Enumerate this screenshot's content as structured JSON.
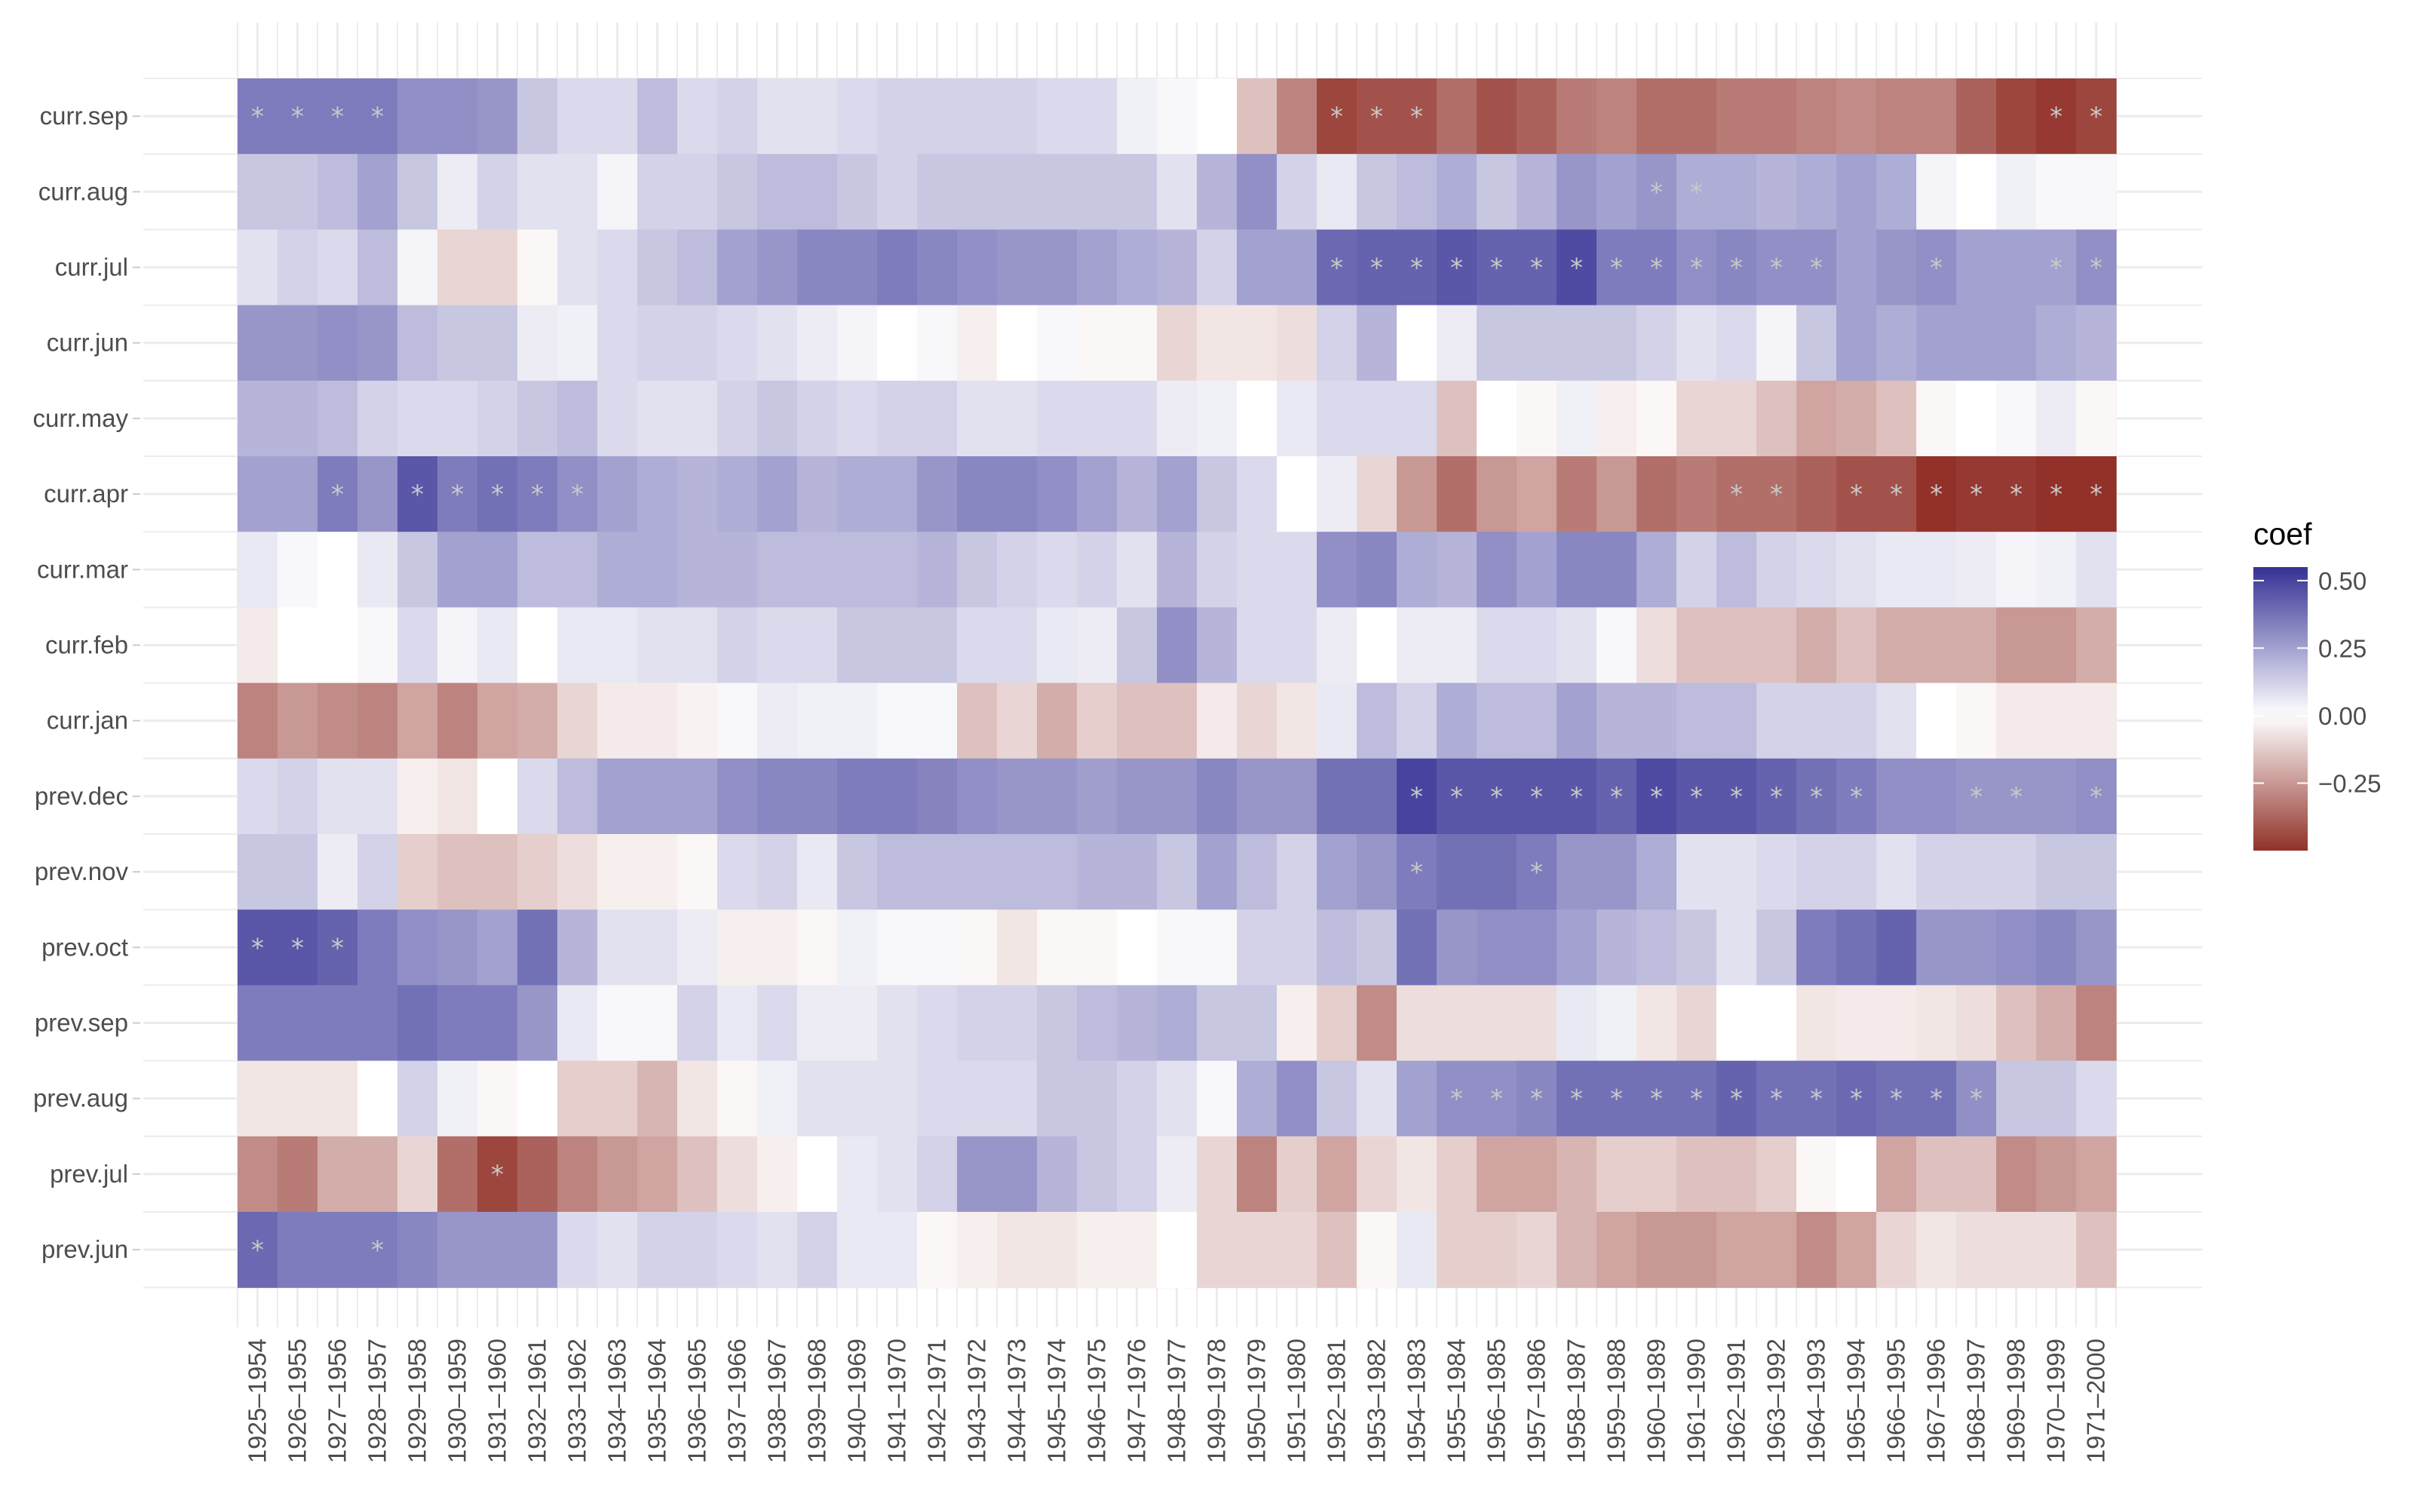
{
  "chart_data": {
    "type": "heatmap",
    "x": [
      "1925–1954",
      "1926–1955",
      "1927–1956",
      "1928–1957",
      "1929–1958",
      "1930–1959",
      "1931–1960",
      "1932–1961",
      "1933–1962",
      "1934–1963",
      "1935–1964",
      "1936–1965",
      "1937–1966",
      "1938–1967",
      "1939–1968",
      "1940–1969",
      "1941–1970",
      "1942–1971",
      "1943–1972",
      "1944–1973",
      "1945–1974",
      "1946–1975",
      "1947–1976",
      "1948–1977",
      "1949–1978",
      "1950–1979",
      "1951–1980",
      "1952–1981",
      "1953–1982",
      "1954–1983",
      "1955–1984",
      "1956–1985",
      "1957–1986",
      "1958–1987",
      "1959–1988",
      "1960–1989",
      "1961–1990",
      "1962–1991",
      "1963–1992",
      "1964–1993",
      "1965–1994",
      "1966–1995",
      "1967–1996",
      "1968–1997",
      "1969–1998",
      "1970–1999",
      "1971–2000"
    ],
    "y": [
      "curr.sep",
      "curr.aug",
      "curr.jul",
      "curr.jun",
      "curr.may",
      "curr.apr",
      "curr.mar",
      "curr.feb",
      "curr.jan",
      "prev.dec",
      "prev.nov",
      "prev.oct",
      "prev.sep",
      "prev.aug",
      "prev.jul",
      "prev.jun"
    ],
    "values": [
      [
        0.35,
        0.35,
        0.35,
        0.35,
        0.3,
        0.3,
        0.28,
        0.15,
        0.1,
        0.1,
        0.18,
        0.1,
        0.12,
        0.08,
        0.08,
        0.1,
        0.12,
        0.12,
        0.12,
        0.12,
        0.1,
        0.1,
        0.04,
        0.02,
        0,
        -0.15,
        -0.3,
        -0.45,
        -0.42,
        -0.42,
        -0.35,
        -0.42,
        -0.38,
        -0.32,
        -0.3,
        -0.35,
        -0.35,
        -0.32,
        -0.32,
        -0.3,
        -0.28,
        -0.3,
        -0.3,
        -0.38,
        -0.45,
        -0.48,
        -0.45
      ],
      [
        0.15,
        0.15,
        0.18,
        0.25,
        0.15,
        0.05,
        0.12,
        0.08,
        0.08,
        0.03,
        0.12,
        0.12,
        0.15,
        0.18,
        0.18,
        0.15,
        0.12,
        0.15,
        0.15,
        0.15,
        0.15,
        0.15,
        0.15,
        0.08,
        0.2,
        0.3,
        0.12,
        0.06,
        0.15,
        0.18,
        0.22,
        0.15,
        0.2,
        0.28,
        0.25,
        0.28,
        0.22,
        0.22,
        0.2,
        0.22,
        0.25,
        0.22,
        0.03,
        0,
        0.04,
        0.02,
        0.02
      ],
      [
        0.08,
        0.12,
        0.1,
        0.18,
        0.03,
        -0.1,
        -0.1,
        -0.02,
        0.08,
        0.1,
        0.15,
        0.18,
        0.25,
        0.28,
        0.32,
        0.32,
        0.35,
        0.32,
        0.3,
        0.28,
        0.28,
        0.25,
        0.22,
        0.2,
        0.12,
        0.25,
        0.25,
        0.4,
        0.42,
        0.42,
        0.45,
        0.42,
        0.42,
        0.48,
        0.35,
        0.35,
        0.3,
        0.32,
        0.3,
        0.3,
        0.25,
        0.28,
        0.3,
        0.25,
        0.25,
        0.25,
        0.3
      ],
      [
        0.28,
        0.28,
        0.3,
        0.28,
        0.18,
        0.15,
        0.15,
        0.05,
        0.04,
        0.1,
        0.12,
        0.12,
        0.1,
        0.08,
        0.05,
        0.03,
        0,
        0.02,
        -0.04,
        0,
        0.02,
        -0.02,
        -0.02,
        -0.1,
        -0.06,
        -0.06,
        -0.08,
        0.12,
        0.2,
        0,
        0.05,
        0.15,
        0.15,
        0.15,
        0.15,
        0.12,
        0.08,
        0.1,
        0.03,
        0.15,
        0.25,
        0.22,
        0.25,
        0.25,
        0.25,
        0.22,
        0.2
      ],
      [
        0.2,
        0.2,
        0.18,
        0.12,
        0.1,
        0.1,
        0.12,
        0.15,
        0.18,
        0.1,
        0.08,
        0.08,
        0.12,
        0.15,
        0.12,
        0.1,
        0.12,
        0.12,
        0.08,
        0.08,
        0.1,
        0.1,
        0.1,
        0.05,
        0.04,
        0,
        0.06,
        0.1,
        0.1,
        0.1,
        -0.15,
        0,
        -0.02,
        0.04,
        -0.04,
        -0.02,
        -0.1,
        -0.1,
        -0.15,
        -0.22,
        -0.2,
        -0.15,
        -0.02,
        0,
        0.02,
        0.05,
        -0.02
      ],
      [
        0.25,
        0.25,
        0.35,
        0.28,
        0.45,
        0.35,
        0.38,
        0.35,
        0.3,
        0.25,
        0.22,
        0.2,
        0.22,
        0.25,
        0.2,
        0.22,
        0.22,
        0.28,
        0.32,
        0.32,
        0.3,
        0.25,
        0.2,
        0.25,
        0.15,
        0.1,
        0,
        0.05,
        -0.1,
        -0.25,
        -0.35,
        -0.25,
        -0.22,
        -0.32,
        -0.25,
        -0.35,
        -0.32,
        -0.35,
        -0.35,
        -0.38,
        -0.42,
        -0.42,
        -0.5,
        -0.48,
        -0.48,
        -0.5,
        -0.5
      ],
      [
        0.06,
        0.02,
        0,
        0.06,
        0.15,
        0.25,
        0.25,
        0.18,
        0.18,
        0.22,
        0.22,
        0.2,
        0.2,
        0.18,
        0.18,
        0.18,
        0.18,
        0.2,
        0.15,
        0.12,
        0.1,
        0.12,
        0.08,
        0.2,
        0.12,
        0.1,
        0.1,
        0.3,
        0.32,
        0.22,
        0.2,
        0.3,
        0.25,
        0.32,
        0.32,
        0.22,
        0.12,
        0.18,
        0.12,
        0.1,
        0.08,
        0.06,
        0.06,
        0.05,
        0.03,
        0.04,
        0.08
      ],
      [
        -0.05,
        0,
        0,
        0.02,
        0.1,
        0.03,
        0.06,
        0,
        0.06,
        0.06,
        0.08,
        0.08,
        0.12,
        0.1,
        0.1,
        0.15,
        0.15,
        0.15,
        0.1,
        0.1,
        0.06,
        0.05,
        0.15,
        0.3,
        0.2,
        0.1,
        0.1,
        0.05,
        0,
        0.05,
        0.05,
        0.1,
        0.1,
        0.08,
        0.02,
        -0.08,
        -0.15,
        -0.15,
        -0.15,
        -0.2,
        -0.15,
        -0.2,
        -0.2,
        -0.2,
        -0.25,
        -0.25,
        -0.2
      ],
      [
        -0.3,
        -0.25,
        -0.28,
        -0.3,
        -0.22,
        -0.3,
        -0.22,
        -0.2,
        -0.1,
        -0.05,
        -0.05,
        -0.03,
        0.02,
        0.05,
        0.04,
        0.04,
        0.02,
        0.02,
        -0.15,
        -0.1,
        -0.2,
        -0.12,
        -0.15,
        -0.15,
        -0.05,
        -0.1,
        -0.06,
        0.06,
        0.18,
        0.12,
        0.22,
        0.18,
        0.18,
        0.25,
        0.2,
        0.2,
        0.18,
        0.18,
        0.12,
        0.12,
        0.12,
        0.08,
        0,
        -0.02,
        -0.05,
        -0.05,
        -0.05
      ],
      [
        0.1,
        0.12,
        0.08,
        0.08,
        -0.04,
        -0.06,
        0,
        0.1,
        0.18,
        0.25,
        0.25,
        0.25,
        0.3,
        0.32,
        0.32,
        0.35,
        0.35,
        0.33,
        0.3,
        0.28,
        0.28,
        0.26,
        0.28,
        0.28,
        0.32,
        0.28,
        0.28,
        0.38,
        0.38,
        0.5,
        0.45,
        0.45,
        0.45,
        0.45,
        0.42,
        0.48,
        0.45,
        0.45,
        0.42,
        0.38,
        0.35,
        0.3,
        0.3,
        0.28,
        0.28,
        0.28,
        0.3
      ],
      [
        0.15,
        0.15,
        0.05,
        0.12,
        -0.12,
        -0.15,
        -0.15,
        -0.12,
        -0.08,
        -0.04,
        -0.04,
        -0.02,
        0.1,
        0.12,
        0.06,
        0.15,
        0.18,
        0.18,
        0.18,
        0.18,
        0.18,
        0.2,
        0.2,
        0.15,
        0.25,
        0.18,
        0.12,
        0.25,
        0.28,
        0.35,
        0.38,
        0.38,
        0.35,
        0.28,
        0.28,
        0.22,
        0.08,
        0.08,
        0.1,
        0.12,
        0.12,
        0.08,
        0.12,
        0.12,
        0.12,
        0.15,
        0.15
      ],
      [
        0.45,
        0.45,
        0.42,
        0.35,
        0.3,
        0.28,
        0.25,
        0.38,
        0.2,
        0.08,
        0.08,
        0.05,
        -0.04,
        -0.04,
        -0.02,
        0.04,
        0.02,
        0.02,
        -0.02,
        -0.06,
        -0.02,
        -0.02,
        0,
        0.02,
        0.02,
        0.12,
        0.12,
        0.18,
        0.15,
        0.38,
        0.28,
        0.3,
        0.3,
        0.25,
        0.2,
        0.18,
        0.15,
        0.08,
        0.15,
        0.35,
        0.38,
        0.42,
        0.28,
        0.28,
        0.3,
        0.32,
        0.28
      ],
      [
        0.35,
        0.35,
        0.35,
        0.35,
        0.38,
        0.35,
        0.35,
        0.28,
        0.06,
        0.02,
        0.02,
        0.12,
        0.06,
        0.1,
        0.05,
        0.05,
        0.08,
        0.1,
        0.12,
        0.12,
        0.15,
        0.18,
        0.2,
        0.22,
        0.15,
        0.15,
        -0.04,
        -0.12,
        -0.28,
        -0.08,
        -0.08,
        -0.08,
        -0.08,
        0.06,
        0.04,
        -0.06,
        -0.1,
        0,
        0,
        -0.06,
        -0.05,
        -0.05,
        -0.06,
        -0.08,
        -0.15,
        -0.2,
        -0.3
      ],
      [
        -0.06,
        -0.06,
        -0.06,
        0,
        0.12,
        0.04,
        -0.02,
        0,
        -0.12,
        -0.12,
        -0.18,
        -0.06,
        -0.02,
        0.04,
        0.08,
        0.08,
        0.08,
        0.1,
        0.1,
        0.1,
        0.15,
        0.15,
        0.12,
        0.08,
        0.02,
        0.22,
        0.3,
        0.15,
        0.08,
        0.25,
        0.3,
        0.3,
        0.32,
        0.38,
        0.38,
        0.38,
        0.38,
        0.42,
        0.38,
        0.38,
        0.4,
        0.38,
        0.38,
        0.3,
        0.15,
        0.15,
        0.1
      ],
      [
        -0.28,
        -0.32,
        -0.2,
        -0.2,
        -0.1,
        -0.35,
        -0.45,
        -0.38,
        -0.3,
        -0.25,
        -0.22,
        -0.15,
        -0.08,
        -0.04,
        0,
        0.06,
        0.08,
        0.12,
        0.28,
        0.28,
        0.2,
        0.15,
        0.12,
        0.05,
        -0.1,
        -0.3,
        -0.12,
        -0.22,
        -0.1,
        -0.06,
        -0.12,
        -0.22,
        -0.22,
        -0.18,
        -0.12,
        -0.12,
        -0.15,
        -0.15,
        -0.12,
        -0.02,
        0,
        -0.22,
        -0.15,
        -0.15,
        -0.28,
        -0.25,
        -0.22
      ],
      [
        0.4,
        0.35,
        0.35,
        0.35,
        0.32,
        0.28,
        0.28,
        0.28,
        0.1,
        0.08,
        0.12,
        0.12,
        0.1,
        0.08,
        0.12,
        0.06,
        0.06,
        -0.02,
        -0.04,
        -0.06,
        -0.06,
        -0.04,
        -0.04,
        0,
        -0.1,
        -0.1,
        -0.1,
        -0.15,
        -0.02,
        0.06,
        -0.12,
        -0.12,
        -0.1,
        -0.18,
        -0.22,
        -0.25,
        -0.25,
        -0.22,
        -0.22,
        -0.28,
        -0.22,
        -0.1,
        -0.06,
        -0.08,
        -0.08,
        -0.08,
        -0.15
      ]
    ],
    "significance": [
      [
        0,
        1,
        2,
        3,
        27,
        28,
        29,
        45,
        46
      ],
      [
        35,
        36
      ],
      [
        27,
        28,
        29,
        30,
        31,
        32,
        33,
        34,
        35,
        36,
        37,
        38,
        39,
        42,
        45,
        46
      ],
      [],
      [],
      [
        2,
        4,
        5,
        6,
        7,
        8,
        37,
        38,
        40,
        41,
        42,
        43,
        44,
        45,
        46
      ],
      [],
      [],
      [],
      [
        29,
        30,
        31,
        32,
        33,
        34,
        35,
        36,
        37,
        38,
        39,
        40,
        43,
        44,
        46
      ],
      [
        29,
        32
      ],
      [
        0,
        1,
        2
      ],
      [],
      [
        30,
        31,
        32,
        33,
        34,
        35,
        36,
        37,
        38,
        39,
        40,
        41,
        42,
        43
      ],
      [
        6
      ],
      [
        0,
        3
      ]
    ],
    "marker": "*",
    "legend": {
      "title": "coef",
      "ticks": [
        0.5,
        0.25,
        0.0,
        -0.25
      ],
      "tick_labels": [
        "0.50",
        "0.25",
        "0.00",
        "−0.25"
      ],
      "range": [
        -0.5,
        0.55
      ],
      "placement": "right"
    },
    "colors": {
      "low": "#913129",
      "mid": "#ffffff",
      "high": "#353195",
      "grid": "#ececec",
      "marker": "#c9c9c9"
    },
    "title": "",
    "xlabel": "",
    "ylabel": "",
    "grid": true
  }
}
